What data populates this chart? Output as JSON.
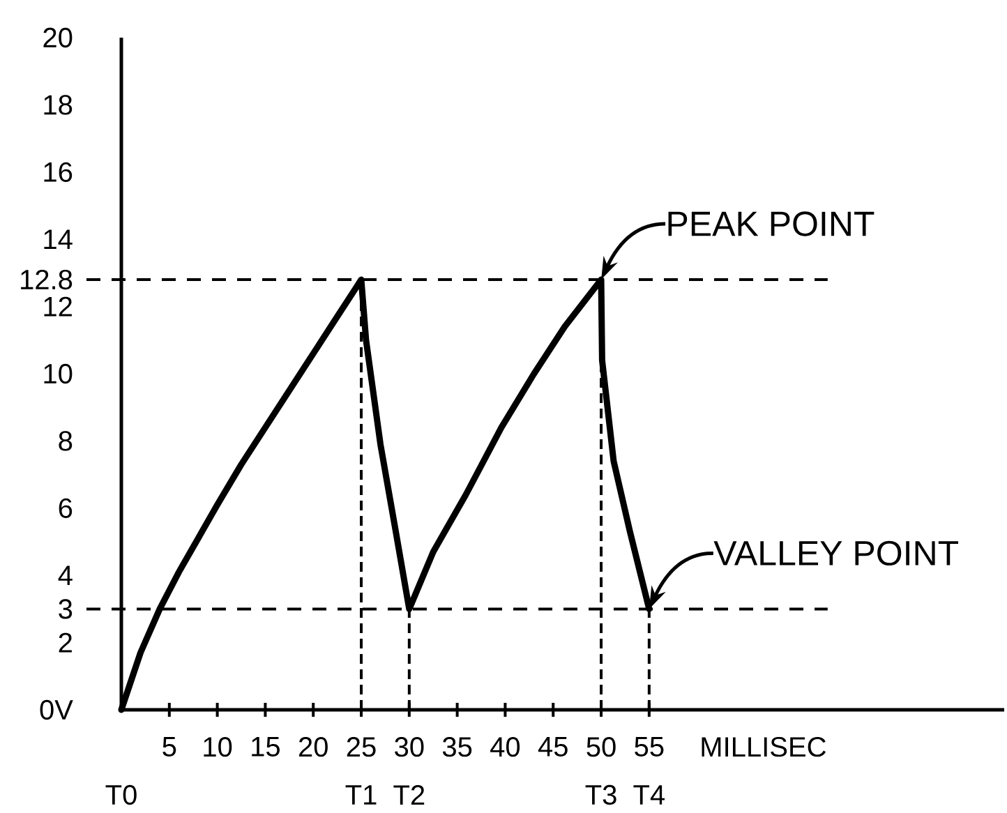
{
  "chart_data": {
    "type": "line",
    "x": [
      0,
      2,
      4,
      6,
      8,
      10,
      12.5,
      15,
      17.5,
      20,
      22.5,
      25,
      25.5,
      27,
      28.6,
      30,
      32.5,
      35.9,
      39.6,
      43,
      46.2,
      50,
      50.1,
      51.3,
      53,
      55
    ],
    "series": [
      {
        "color": "#000000",
        "values": [
          0,
          1.7,
          3.0,
          4.1,
          5.1,
          6.1,
          7.3,
          8.4,
          9.5,
          10.6,
          11.7,
          12.8,
          11.0,
          7.9,
          5.3,
          3.0,
          4.7,
          6.4,
          8.4,
          10.0,
          11.4,
          12.8,
          10.4,
          7.4,
          5.3,
          3.0
        ]
      }
    ],
    "xlabel": "MILLISEC",
    "xlim": [
      0,
      92
    ],
    "xticks": [
      5,
      10,
      15,
      20,
      25,
      30,
      35,
      40,
      45,
      50,
      55
    ],
    "ylim": [
      0,
      20
    ],
    "yticks": [
      {
        "value": 0,
        "label": "0V"
      },
      2,
      3,
      4,
      6,
      8,
      10,
      12,
      12.8,
      14,
      16,
      18,
      20
    ],
    "ref_lines": [
      {
        "axis": "y",
        "value": 12.8,
        "line_style": "dashed"
      },
      {
        "axis": "y",
        "value": 3,
        "line_style": "dashed"
      },
      {
        "axis": "x",
        "value": 25,
        "label": "T1",
        "line_style": "dashed"
      },
      {
        "axis": "x",
        "value": 30,
        "label": "T2",
        "line_style": "dashed"
      },
      {
        "axis": "x",
        "value": 50,
        "label": "T3",
        "line_style": "dashed"
      },
      {
        "axis": "x",
        "value": 55,
        "label": "T4",
        "line_style": "dashed"
      }
    ],
    "annotations": [
      "T0",
      {
        "text": "PEAK POINT",
        "x": 50,
        "y": 12.8
      },
      {
        "text": "VALLEY POINT",
        "x": 55,
        "y": 3
      }
    ]
  }
}
